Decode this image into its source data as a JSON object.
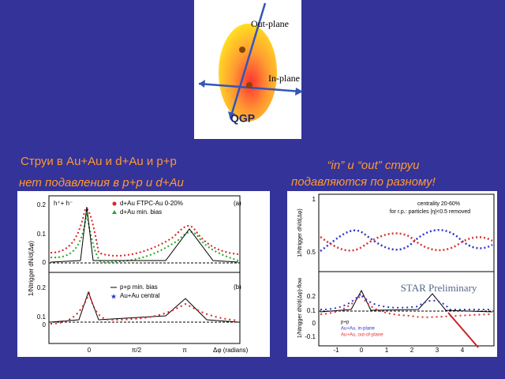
{
  "diagram": {
    "out_label": "Out-plane",
    "in_label": "In-plane",
    "qgp": "QGP"
  },
  "left_text": {
    "line1": "Струи в Au+Au и d+Au  и p+p",
    "line2": "нет подавления в p+p и d+Au"
  },
  "right_text": {
    "line1": "“in” и “out” струи",
    "line2": "подавляются по разному!"
  },
  "left_plot": {
    "y_label": "1/Ntrigger dN/d(Δφ)",
    "x_label": "Δφ (radians)",
    "xticks": [
      "0",
      "π/2",
      "π"
    ],
    "panel_a": {
      "label": "(a)",
      "species": "h⁺+ h⁻",
      "legend": [
        "d+Au FTPC-Au 0-20%",
        "d+Au min. bias"
      ],
      "yticks": [
        "0.2",
        "0.1",
        "0"
      ]
    },
    "panel_b": {
      "label": "(b)",
      "legend": [
        "p+p min. bias",
        "Au+Au central"
      ],
      "yticks": [
        "0.2",
        "0.1",
        "0"
      ]
    }
  },
  "right_plot": {
    "top": {
      "y_label": "1/Ntrigger dN/d(Δφ)",
      "yticks": [
        "1",
        "0.5"
      ],
      "note1": "centrality 20-60%",
      "note2": "for r.p.: particles |η|<0.5 removed"
    },
    "bottom": {
      "y_label": "1/Ntrigger dN/d(Δφ)-flow",
      "yticks": [
        "0.2",
        "0.1",
        "0",
        "-0.1"
      ],
      "title": "STAR Preliminary",
      "legend": [
        "p+p",
        "Au+Au, in-plane",
        "Au+Au, out-of-plane"
      ]
    },
    "xticks": [
      "-1",
      "0",
      "1",
      "2",
      "3",
      "4"
    ]
  }
}
